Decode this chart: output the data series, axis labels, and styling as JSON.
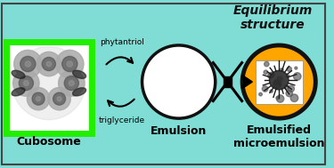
{
  "background_color": "#80DDD5",
  "title_text": "Equilibrium\nstructure",
  "cubosome_label": "Cubosome",
  "emulsion_label": "Emulsion",
  "microemulsion_label": "Emulsified\nmicroemulsion",
  "phytantriol_label": "phytantriol",
  "triglyceride_label": "triglyceride",
  "cubosome_box_color": "#22EE00",
  "microemulsion_circle_color": "#FFA500",
  "label_fontsize": 9,
  "label_fontsize_small": 6.5,
  "title_fontsize": 10
}
